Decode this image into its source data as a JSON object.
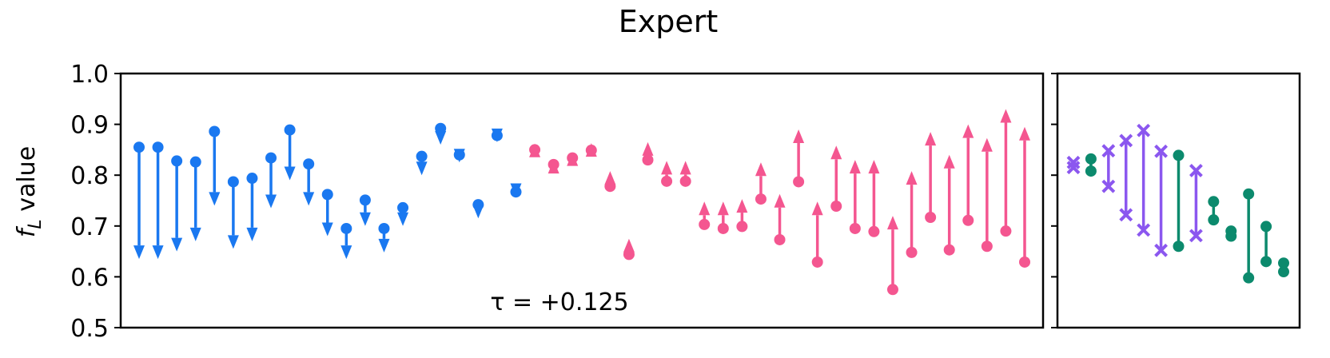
{
  "chart_data": {
    "type": "arrow",
    "title": "Expert",
    "ylabel_main": "f",
    "ylabel_sub": "L",
    "ylabel_rest": " value",
    "ylim": [
      0.5,
      1.0
    ],
    "yticks": [
      "0.5",
      "0.6",
      "0.7",
      "0.8",
      "0.9",
      "1.0"
    ],
    "annotation": "τ = +0.125",
    "colors": {
      "decrease": "#1a78f0",
      "increase": "#f45690",
      "purple": "#8b57ef",
      "green": "#0c8a6d"
    },
    "main_panel": {
      "series": [
        {
          "name": "decrease",
          "color": "#1a78f0",
          "pairs": [
            [
              0.855,
              0.635
            ],
            [
              0.855,
              0.635
            ],
            [
              0.828,
              0.65
            ],
            [
              0.826,
              0.67
            ],
            [
              0.886,
              0.74
            ],
            [
              0.787,
              0.655
            ],
            [
              0.794,
              0.67
            ],
            [
              0.834,
              0.735
            ],
            [
              0.889,
              0.79
            ],
            [
              0.822,
              0.74
            ],
            [
              0.762,
              0.68
            ],
            [
              0.695,
              0.635
            ],
            [
              0.751,
              0.7
            ],
            [
              0.695,
              0.648
            ],
            [
              0.736,
              0.7
            ],
            [
              0.837,
              0.8
            ],
            [
              0.892,
              0.86
            ],
            [
              0.84,
              0.825
            ],
            [
              0.742,
              0.715
            ],
            [
              0.878,
              0.865
            ],
            [
              0.767,
              0.757
            ]
          ]
        },
        {
          "name": "increase",
          "color": "#f45690",
          "pairs": [
            [
              0.85,
              0.862
            ],
            [
              0.821,
              0.83
            ],
            [
              0.834,
              0.845
            ],
            [
              0.849,
              0.863
            ],
            [
              0.778,
              0.808
            ],
            [
              0.644,
              0.675
            ],
            [
              0.83,
              0.865
            ],
            [
              0.788,
              0.828
            ],
            [
              0.788,
              0.828
            ],
            [
              0.703,
              0.748
            ],
            [
              0.695,
              0.748
            ],
            [
              0.699,
              0.753
            ],
            [
              0.753,
              0.825
            ],
            [
              0.673,
              0.763
            ],
            [
              0.787,
              0.89
            ],
            [
              0.629,
              0.748
            ],
            [
              0.739,
              0.858
            ],
            [
              0.695,
              0.83
            ],
            [
              0.689,
              0.83
            ],
            [
              0.575,
              0.72
            ],
            [
              0.648,
              0.808
            ],
            [
              0.717,
              0.885
            ],
            [
              0.653,
              0.84
            ],
            [
              0.711,
              0.9
            ],
            [
              0.66,
              0.873
            ],
            [
              0.69,
              0.93
            ],
            [
              0.629,
              0.895
            ]
          ]
        }
      ]
    },
    "side_panel": {
      "series": [
        {
          "name": "purple",
          "color": "#8b57ef",
          "marker": "x",
          "pairs": [
            [
              0.825,
              0.815
            ],
            [
              0.848,
              0.778
            ],
            [
              0.868,
              0.722
            ],
            [
              0.888,
              0.692
            ],
            [
              0.847,
              0.652
            ],
            [
              0.809,
              0.681
            ]
          ]
        },
        {
          "name": "green",
          "color": "#0c8a6d",
          "marker": "o",
          "pairs": [
            [
              0.832,
              0.808
            ],
            [
              0.839,
              0.66
            ],
            [
              0.748,
              0.712
            ],
            [
              0.69,
              0.68
            ],
            [
              0.763,
              0.598
            ],
            [
              0.699,
              0.63
            ],
            [
              0.627,
              0.61
            ]
          ]
        }
      ],
      "order": [
        [
          "purple",
          0
        ],
        [
          "green",
          0
        ],
        [
          "purple",
          1
        ],
        [
          "purple",
          2
        ],
        [
          "purple",
          3
        ],
        [
          "purple",
          4
        ],
        [
          "green",
          1
        ],
        [
          "purple",
          5
        ],
        [
          "green",
          2
        ],
        [
          "green",
          3
        ],
        [
          "green",
          4
        ],
        [
          "green",
          5
        ],
        [
          "green",
          6
        ]
      ]
    }
  }
}
